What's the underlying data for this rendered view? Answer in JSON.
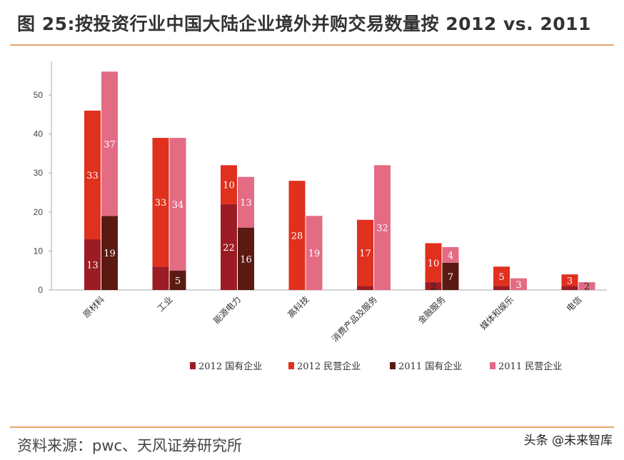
{
  "header": {
    "title": "图 25:按投资行业中国大陆企业境外并购交易数量按 2012 vs. 2011"
  },
  "footer": {
    "source": "资料来源：pwc、天风证券研究所",
    "watermark": "头条 @未来智库"
  },
  "colors": {
    "2012_state": "#9b1c24",
    "2012_private": "#e0301e",
    "2011_state": "#5a1a12",
    "2011_private": "#e36b84",
    "accent_rule": "#e8a56a"
  },
  "chart_data": {
    "type": "bar",
    "stacked": true,
    "categories": [
      "原材料",
      "工业",
      "能源电力",
      "高科技",
      "消费产品及服务",
      "金融服务",
      "媒体和娱乐",
      "电信"
    ],
    "ylim": [
      0,
      58
    ],
    "yticks": [
      "0",
      "10",
      "20",
      "30",
      "40",
      "50"
    ],
    "groups": [
      "2012",
      "2011"
    ],
    "series": [
      {
        "name": "2012 国有企业",
        "group": "2012",
        "values": [
          13,
          6,
          22,
          0,
          1,
          2,
          1,
          1
        ]
      },
      {
        "name": "2012 民营企业",
        "group": "2012",
        "values": [
          33,
          33,
          10,
          28,
          17,
          10,
          5,
          3
        ]
      },
      {
        "name": "2011 国有企业",
        "group": "2011",
        "values": [
          19,
          5,
          16,
          0,
          0,
          7,
          0,
          0
        ]
      },
      {
        "name": "2011 民营企业",
        "group": "2011",
        "values": [
          37,
          34,
          13,
          19,
          32,
          4,
          3,
          2
        ]
      }
    ],
    "data_labels": [
      [
        "13",
        "",
        "22",
        "",
        "",
        "2",
        "",
        ""
      ],
      [
        "33",
        "33",
        "10",
        "28",
        "17",
        "10",
        "5",
        "3"
      ],
      [
        "19",
        "5",
        "16",
        "",
        "",
        "7",
        "",
        ""
      ],
      [
        "37",
        "34",
        "13",
        "19",
        "32",
        "4",
        "3",
        "2"
      ]
    ],
    "grid": false,
    "legend_position": "bottom"
  }
}
